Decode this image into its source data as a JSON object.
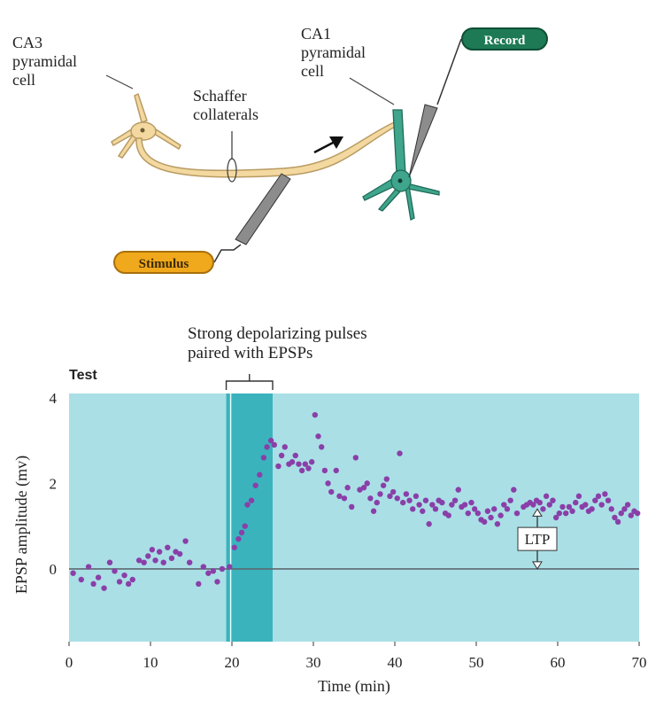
{
  "diagram": {
    "ca3_label": [
      "CA3",
      "pyramidal",
      "cell"
    ],
    "ca1_label": [
      "CA1",
      "pyramidal",
      "cell"
    ],
    "schaffer_label": [
      "Schaffer",
      "collaterals"
    ],
    "record_label": "Record",
    "stimulus_label": "Stimulus",
    "colors": {
      "ca3": "#f3d8a0",
      "ca1": "#3fa58c",
      "record": "#1d7a55",
      "stimulus": "#f0a81c"
    }
  },
  "chart_data": {
    "type": "scatter",
    "title": "",
    "xlabel": "Time (min)",
    "ylabel": "EPSP amplitude (mv)",
    "xlim": [
      0,
      70
    ],
    "ylim": [
      -1.7,
      4.1
    ],
    "x_ticks": [
      0,
      10,
      20,
      30,
      40,
      50,
      60,
      70
    ],
    "y_ticks": [
      0,
      2,
      4
    ],
    "grid": false,
    "test_label": "Test",
    "annotation": [
      "Strong depolarizing pulses",
      "paired with EPSPs"
    ],
    "stimulation_window": [
      19.3,
      25
    ],
    "ltp_label": "LTP",
    "ltp_marker": {
      "x": 57.5,
      "y_from": 0,
      "y_to": 1.4
    },
    "colors": {
      "background": "#aadfe6",
      "window": "#3ab3bd",
      "points": "#8a3fa8",
      "baseline": "#5e6a70"
    },
    "series": [
      {
        "values": [
          [
            0.5,
            -0.1
          ],
          [
            1.5,
            -0.25
          ],
          [
            2.4,
            0.05
          ],
          [
            3.0,
            -0.35
          ],
          [
            3.6,
            -0.2
          ],
          [
            4.3,
            -0.45
          ],
          [
            5.0,
            0.15
          ],
          [
            5.6,
            -0.05
          ],
          [
            6.2,
            -0.3
          ],
          [
            6.8,
            -0.15
          ],
          [
            7.3,
            -0.35
          ],
          [
            7.8,
            -0.25
          ],
          [
            8.6,
            0.2
          ],
          [
            9.2,
            0.15
          ],
          [
            9.7,
            0.3
          ],
          [
            10.2,
            0.45
          ],
          [
            10.6,
            0.2
          ],
          [
            11.1,
            0.4
          ],
          [
            11.6,
            0.15
          ],
          [
            12.1,
            0.5
          ],
          [
            12.6,
            0.25
          ],
          [
            13.1,
            0.4
          ],
          [
            13.6,
            0.35
          ],
          [
            14.3,
            0.65
          ],
          [
            14.8,
            0.15
          ],
          [
            15.9,
            -0.35
          ],
          [
            16.5,
            0.05
          ],
          [
            17.1,
            -0.1
          ],
          [
            17.7,
            -0.05
          ],
          [
            18.2,
            -0.3
          ],
          [
            18.8,
            0.0
          ],
          [
            19.7,
            0.05
          ],
          [
            20.3,
            0.5
          ],
          [
            20.8,
            0.7
          ],
          [
            21.2,
            0.85
          ],
          [
            21.6,
            1.0
          ],
          [
            21.9,
            1.5
          ],
          [
            22.4,
            1.6
          ],
          [
            22.9,
            1.95
          ],
          [
            23.4,
            2.2
          ],
          [
            23.9,
            2.6
          ],
          [
            24.3,
            2.85
          ],
          [
            24.8,
            3.0
          ],
          [
            25.2,
            2.9
          ],
          [
            25.7,
            2.4
          ],
          [
            26.1,
            2.65
          ],
          [
            26.5,
            2.85
          ],
          [
            27.0,
            2.45
          ],
          [
            27.4,
            2.5
          ],
          [
            27.8,
            2.65
          ],
          [
            28.2,
            2.45
          ],
          [
            28.6,
            2.3
          ],
          [
            29.0,
            2.45
          ],
          [
            29.4,
            2.35
          ],
          [
            29.8,
            2.5
          ],
          [
            30.2,
            3.6
          ],
          [
            30.6,
            3.1
          ],
          [
            31.0,
            2.85
          ],
          [
            31.4,
            2.3
          ],
          [
            31.8,
            2.0
          ],
          [
            32.2,
            1.8
          ],
          [
            32.8,
            2.3
          ],
          [
            33.2,
            1.7
          ],
          [
            33.8,
            1.65
          ],
          [
            34.2,
            1.9
          ],
          [
            34.7,
            1.45
          ],
          [
            35.2,
            2.6
          ],
          [
            35.7,
            1.85
          ],
          [
            36.2,
            1.9
          ],
          [
            36.6,
            2.0
          ],
          [
            37.0,
            1.65
          ],
          [
            37.4,
            1.35
          ],
          [
            37.8,
            1.55
          ],
          [
            38.2,
            1.75
          ],
          [
            38.6,
            1.95
          ],
          [
            39.0,
            2.1
          ],
          [
            39.4,
            1.7
          ],
          [
            39.8,
            1.8
          ],
          [
            40.3,
            1.65
          ],
          [
            40.6,
            2.7
          ],
          [
            41.0,
            1.55
          ],
          [
            41.4,
            1.75
          ],
          [
            41.8,
            1.6
          ],
          [
            42.2,
            1.4
          ],
          [
            42.6,
            1.7
          ],
          [
            43.0,
            1.5
          ],
          [
            43.4,
            1.35
          ],
          [
            43.8,
            1.6
          ],
          [
            44.2,
            1.05
          ],
          [
            44.6,
            1.5
          ],
          [
            45.0,
            1.4
          ],
          [
            45.4,
            1.6
          ],
          [
            45.8,
            1.55
          ],
          [
            46.2,
            1.3
          ],
          [
            46.6,
            1.25
          ],
          [
            47.0,
            1.5
          ],
          [
            47.4,
            1.6
          ],
          [
            47.8,
            1.85
          ],
          [
            48.2,
            1.45
          ],
          [
            48.6,
            1.5
          ],
          [
            49.0,
            1.3
          ],
          [
            49.4,
            1.55
          ],
          [
            49.8,
            1.4
          ],
          [
            50.2,
            1.3
          ],
          [
            50.6,
            1.15
          ],
          [
            51.0,
            1.1
          ],
          [
            51.4,
            1.35
          ],
          [
            51.8,
            1.2
          ],
          [
            52.2,
            1.4
          ],
          [
            52.6,
            1.05
          ],
          [
            53.0,
            1.25
          ],
          [
            53.4,
            1.5
          ],
          [
            53.8,
            1.4
          ],
          [
            54.2,
            1.6
          ],
          [
            54.6,
            1.85
          ],
          [
            55.0,
            1.3
          ],
          [
            55.4,
            0.9
          ],
          [
            55.8,
            1.45
          ],
          [
            56.2,
            1.5
          ],
          [
            56.6,
            1.55
          ],
          [
            57.0,
            1.5
          ],
          [
            57.4,
            1.6
          ],
          [
            57.8,
            1.55
          ],
          [
            58.2,
            1.4
          ],
          [
            58.6,
            1.7
          ],
          [
            59.0,
            1.5
          ],
          [
            59.4,
            1.6
          ],
          [
            59.8,
            1.2
          ],
          [
            60.2,
            1.3
          ],
          [
            60.6,
            1.45
          ],
          [
            61.0,
            1.3
          ],
          [
            61.4,
            1.45
          ],
          [
            61.8,
            1.35
          ],
          [
            62.2,
            1.55
          ],
          [
            62.6,
            1.7
          ],
          [
            63.0,
            1.45
          ],
          [
            63.4,
            1.5
          ],
          [
            63.8,
            1.35
          ],
          [
            64.2,
            1.4
          ],
          [
            64.6,
            1.6
          ],
          [
            65.0,
            1.7
          ],
          [
            65.4,
            1.5
          ],
          [
            65.8,
            1.75
          ],
          [
            66.2,
            1.6
          ],
          [
            66.6,
            1.4
          ],
          [
            67.0,
            1.2
          ],
          [
            67.4,
            1.1
          ],
          [
            67.8,
            1.3
          ],
          [
            68.2,
            1.4
          ],
          [
            68.6,
            1.5
          ],
          [
            69.0,
            1.25
          ],
          [
            69.4,
            1.35
          ],
          [
            69.8,
            1.3
          ]
        ]
      }
    ]
  }
}
